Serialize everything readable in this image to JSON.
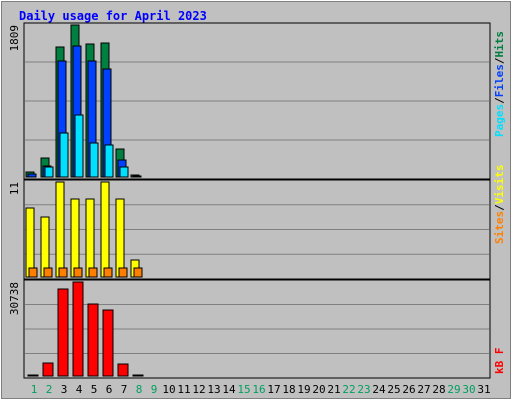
{
  "chart_data": {
    "type": "bar",
    "title": "Daily usage for April 2023",
    "categories": [
      "1",
      "2",
      "3",
      "4",
      "5",
      "6",
      "7",
      "8",
      "9",
      "10",
      "11",
      "12",
      "13",
      "14",
      "15",
      "16",
      "17",
      "18",
      "19",
      "20",
      "21",
      "22",
      "23",
      "24",
      "25",
      "26",
      "27",
      "28",
      "29",
      "30",
      "31"
    ],
    "weekend_days": [
      "1",
      "2",
      "8",
      "9",
      "15",
      "16",
      "22",
      "23",
      "29",
      "30"
    ],
    "panels": [
      {
        "id": "hits",
        "max_label": "1809",
        "ymax": 1809,
        "legend": [
          "Pages",
          "/",
          "Files",
          "/",
          "Hits"
        ],
        "series": [
          {
            "name": "Hits",
            "color": "#008040",
            "values": [
              61,
              227,
              1545,
              1809,
              1588,
              1594,
              330,
              22,
              0,
              0,
              0,
              0,
              0,
              0,
              0,
              0,
              0,
              0,
              0,
              0,
              0,
              0,
              0,
              0,
              0,
              0,
              0,
              0,
              0,
              0,
              0
            ]
          },
          {
            "name": "Files",
            "color": "#0040ff",
            "values": [
              30,
              130,
              1380,
              1560,
              1380,
              1280,
              200,
              14,
              0,
              0,
              0,
              0,
              0,
              0,
              0,
              0,
              0,
              0,
              0,
              0,
              0,
              0,
              0,
              0,
              0,
              0,
              0,
              0,
              0,
              0,
              0
            ]
          },
          {
            "name": "Pages",
            "color": "#00e0ff",
            "values": [
              0,
              117,
              519,
              735,
              405,
              386,
              117,
              0,
              0,
              0,
              0,
              0,
              0,
              0,
              0,
              0,
              0,
              0,
              0,
              0,
              0,
              0,
              0,
              0,
              0,
              0,
              0,
              0,
              0,
              0,
              0
            ]
          }
        ]
      },
      {
        "id": "visits",
        "max_label": "11",
        "ymax": 11,
        "legend": [
          "Sites",
          "/",
          "Visits"
        ],
        "series": [
          {
            "name": "Visits",
            "color": "#ffff00",
            "values": [
              8,
              7,
              11,
              9,
              9,
              11,
              9,
              2,
              0,
              0,
              0,
              0,
              0,
              0,
              0,
              0,
              0,
              0,
              0,
              0,
              0,
              0,
              0,
              0,
              0,
              0,
              0,
              0,
              0,
              0,
              0
            ]
          },
          {
            "name": "Sites",
            "color": "#ff8000",
            "values": [
              1,
              1,
              1,
              1,
              1,
              1,
              1,
              1,
              0,
              0,
              0,
              0,
              0,
              0,
              0,
              0,
              0,
              0,
              0,
              0,
              0,
              0,
              0,
              0,
              0,
              0,
              0,
              0,
              0,
              0,
              0
            ]
          }
        ]
      },
      {
        "id": "kbytes",
        "max_label": "30738",
        "ymax": 30738,
        "legend": [
          "kB F"
        ],
        "series": [
          {
            "name": "kB F",
            "color": "#ff0000",
            "values": [
              300,
              4300,
              28300,
              30738,
              23400,
              21600,
              4000,
              300,
              0,
              0,
              0,
              0,
              0,
              0,
              0,
              0,
              0,
              0,
              0,
              0,
              0,
              0,
              0,
              0,
              0,
              0,
              0,
              0,
              0,
              0,
              0
            ]
          }
        ]
      }
    ],
    "grid": true
  },
  "colors": {
    "background": "#c0c0c0",
    "title": "#0000ff",
    "weekday_label": "#000000",
    "weekend_label": "#00a060",
    "legend_pages": "#00e0ff",
    "legend_files": "#0040ff",
    "legend_hits": "#008040",
    "legend_sites": "#ff8000",
    "legend_visits": "#ffff00",
    "legend_kb": "#ff0000",
    "legend_separator": "#000000"
  }
}
